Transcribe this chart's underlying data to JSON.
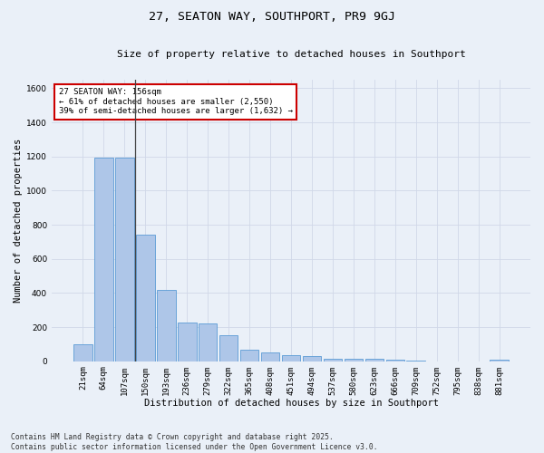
{
  "title": "27, SEATON WAY, SOUTHPORT, PR9 9GJ",
  "subtitle": "Size of property relative to detached houses in Southport",
  "xlabel": "Distribution of detached houses by size in Southport",
  "ylabel": "Number of detached properties",
  "categories": [
    "21sqm",
    "64sqm",
    "107sqm",
    "150sqm",
    "193sqm",
    "236sqm",
    "279sqm",
    "322sqm",
    "365sqm",
    "408sqm",
    "451sqm",
    "494sqm",
    "537sqm",
    "580sqm",
    "623sqm",
    "666sqm",
    "709sqm",
    "752sqm",
    "795sqm",
    "838sqm",
    "881sqm"
  ],
  "values": [
    100,
    1195,
    1195,
    740,
    420,
    225,
    220,
    150,
    65,
    50,
    35,
    30,
    15,
    15,
    12,
    10,
    5,
    0,
    0,
    0,
    10
  ],
  "bar_color": "#aec6e8",
  "bar_edge_color": "#5b9bd5",
  "annotation_text": "27 SEATON WAY: 156sqm\n← 61% of detached houses are smaller (2,550)\n39% of semi-detached houses are larger (1,632) →",
  "annotation_box_color": "#ffffff",
  "annotation_box_edge_color": "#cc0000",
  "annotation_fontsize": 6.5,
  "ylim": [
    0,
    1650
  ],
  "yticks": [
    0,
    200,
    400,
    600,
    800,
    1000,
    1200,
    1400,
    1600
  ],
  "grid_color": "#d0d8e8",
  "background_color": "#eaf0f8",
  "footer_text": "Contains HM Land Registry data © Crown copyright and database right 2025.\nContains public sector information licensed under the Open Government Licence v3.0.",
  "title_fontsize": 9.5,
  "subtitle_fontsize": 8,
  "xlabel_fontsize": 7.5,
  "ylabel_fontsize": 7.5,
  "tick_fontsize": 6.5,
  "footer_fontsize": 5.8
}
